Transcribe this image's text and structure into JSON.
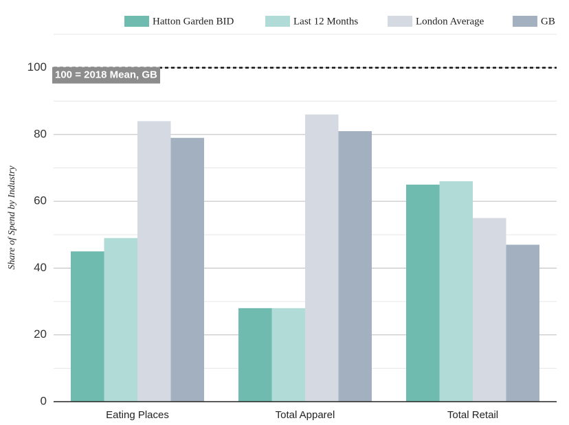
{
  "chart_data": {
    "type": "bar",
    "y_label": "Share of Spend by Industry",
    "categories": [
      "Eating Places",
      "Total Apparel",
      "Total Retail"
    ],
    "series": [
      {
        "name": "Hatton Garden BID",
        "color": "#6fbbaf",
        "values": [
          45,
          28,
          65
        ]
      },
      {
        "name": "Last 12 Months",
        "color": "#b1dbd7",
        "values": [
          49,
          28,
          66
        ]
      },
      {
        "name": "London Average",
        "color": "#d5dae2",
        "values": [
          84,
          86,
          55
        ]
      },
      {
        "name": "GB",
        "color": "#a2b0bf",
        "values": [
          79,
          81,
          47
        ]
      }
    ],
    "ylim": [
      0,
      110
    ],
    "yticks": [
      0,
      20,
      40,
      60,
      80,
      100
    ],
    "minor_grid": [
      10,
      30,
      50,
      70,
      90,
      110
    ],
    "grid": true,
    "legend": "top",
    "reference_line": {
      "value": 100,
      "label": "100 = 2018 Mean, GB"
    }
  }
}
